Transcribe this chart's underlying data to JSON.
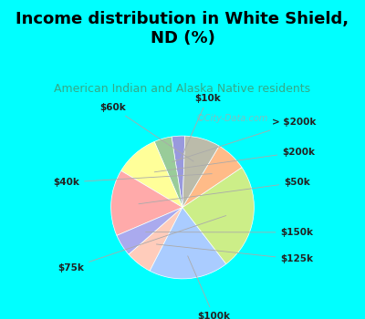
{
  "title": "Income distribution in White Shield,\nND (%)",
  "subtitle": "American Indian and Alaska Native residents",
  "title_color": "#000000",
  "subtitle_color": "#33aa88",
  "bg_color": "#00ffff",
  "chart_bg_top": "#d0efe0",
  "chart_bg_bot": "#e8f8f0",
  "watermark": "©City-Data.com",
  "labels": [
    "$10k",
    "> $200k",
    "$200k",
    "$50k",
    "$150k",
    "$125k",
    "$100k",
    "$75k",
    "$40k",
    "$60k"
  ],
  "sizes": [
    3,
    4,
    10,
    15,
    5,
    6,
    18,
    24,
    7,
    8
  ],
  "colors": [
    "#9999dd",
    "#99cc99",
    "#ffff99",
    "#ffaaaa",
    "#aaaaee",
    "#ffccbb",
    "#aaccff",
    "#ccee88",
    "#ffbb88",
    "#bbbbaa"
  ],
  "startangle": 88,
  "label_angles_override": [
    null,
    null,
    null,
    null,
    null,
    null,
    null,
    null,
    null,
    null
  ],
  "title_fontsize": 13,
  "subtitle_fontsize": 9
}
